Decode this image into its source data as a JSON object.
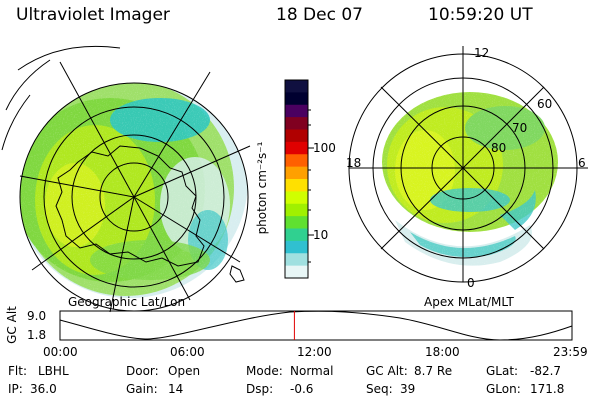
{
  "header": {
    "instrument": "Ultraviolet Imager",
    "date": "18 Dec 07",
    "time": "10:59:20 UT"
  },
  "colorbar": {
    "unit_label": "photon cm⁻²s⁻¹",
    "ticks": [
      "100",
      "10"
    ],
    "colors": [
      "#101040",
      "#000030",
      "#4a0060",
      "#800020",
      "#b00000",
      "#e00000",
      "#ff6000",
      "#ffa000",
      "#ffe000",
      "#d0ff00",
      "#a0f000",
      "#60e030",
      "#30d090",
      "#30c0d0",
      "#a0e0e0",
      "#e8f6f6"
    ]
  },
  "left_panel": {
    "caption": "Geographic Lat/Lon"
  },
  "right_panel": {
    "caption": "Apex MLat/MLT",
    "mlt_labels": [
      "12",
      "18",
      "6",
      "0"
    ],
    "mlat_labels": [
      "60",
      "70",
      "80"
    ]
  },
  "altitude_plot": {
    "ylabel": "GC Alt",
    "yticks": [
      "9.0",
      "1.8"
    ],
    "xticks": [
      "00:00",
      "06:00",
      "12:00",
      "18:00",
      "23:59"
    ],
    "current_time_fraction": 0.4578
  },
  "info": {
    "flt_label": "Flt:",
    "flt_value": "LBHL",
    "ip_label": "IP:",
    "ip_value": "36.0",
    "door_label": "Door:",
    "door_value": "Open",
    "gain_label": "Gain:",
    "gain_value": "14",
    "mode_label": "Mode:",
    "mode_value": "Normal",
    "dsp_label": "Dsp:",
    "dsp_value": "-0.6",
    "gcalt_label": "GC Alt:",
    "gcalt_value": "8.7 Re",
    "seq_label": "Seq:",
    "seq_value": "39",
    "glat_label": "GLat:",
    "glat_value": "-82.7",
    "glon_label": "GLon:",
    "glon_value": "171.8"
  }
}
